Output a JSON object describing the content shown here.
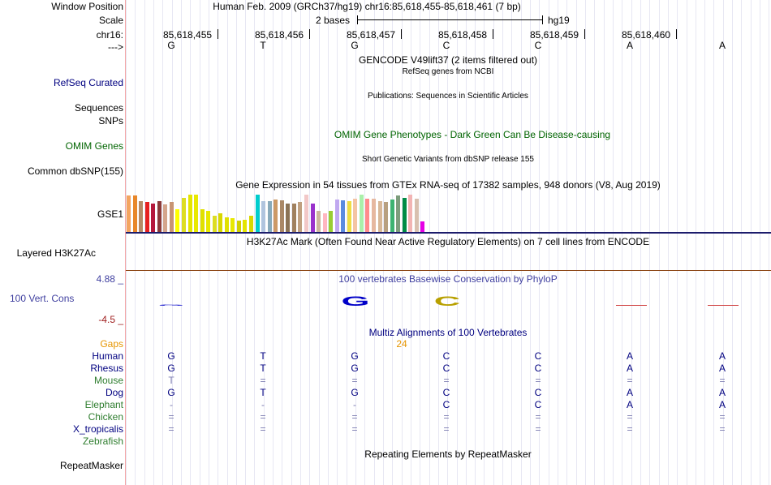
{
  "labels": {
    "window_position": "Window Position",
    "scale": "Scale",
    "chrom": "chr16:",
    "strand": "--->",
    "refseq": "RefSeq Curated",
    "sequences": "Sequences",
    "snps": "SNPs",
    "omim": "OMIM Genes",
    "common_dbsnp": "Common dbSNP(155)",
    "gse1": "GSE1",
    "h3k27ac": "Layered H3K27Ac",
    "phylop_max": "4.88 _",
    "phylop": "100 Vert. Cons",
    "phylop_min": "-4.5 _",
    "gaps": "Gaps",
    "species": [
      "Human",
      "Rhesus",
      "Mouse",
      "Dog",
      "Elephant",
      "Chicken",
      "X_tropicalis",
      "Zebrafish"
    ],
    "repeatmasker": "RepeatMasker"
  },
  "header": {
    "title": "Human Feb. 2009 (GRCh37/hg19)   chr16:85,618,455-85,618,461 (7 bp)",
    "scale_left": "2 bases",
    "scale_right": "hg19"
  },
  "ruler": {
    "positions": [
      "85,618,455",
      "85,618,456",
      "85,618,457",
      "85,618,458",
      "85,618,459",
      "85,618,460"
    ]
  },
  "sequence": [
    "G",
    "T",
    "G",
    "C",
    "C",
    "A",
    "A"
  ],
  "tracks": {
    "gencode": "GENCODE V49lift37 (2 items filtered out)",
    "refseq": "RefSeq genes from NCBI",
    "publications": "Publications: Sequences in Scientific Articles",
    "omim": "OMIM Gene Phenotypes - Dark Green Can Be Disease-causing",
    "dbsnp": "Short Genetic Variants from dbSNP release 155",
    "gtex": "Gene Expression in 54 tissues from GTEx RNA-seq of 17382 samples, 948 donors (V8, Aug 2019)",
    "h3k27ac": "H3K27Ac Mark (Often Found Near Active Regulatory Elements) on 7 cell lines from ENCODE",
    "phylop": "100 vertebrates Basewise Conservation by PhyloP",
    "multiz": "Multiz Alignments of 100 Vertebrates",
    "gap_count": "24",
    "repeatmasker": "Repeating Elements by RepeatMasker"
  },
  "alignment": [
    [
      "G",
      "T",
      "G",
      "C",
      "C",
      "A",
      "A"
    ],
    [
      "G",
      "T",
      "G",
      "C",
      "C",
      "A",
      "A"
    ],
    [
      "T",
      "=",
      "=",
      "=",
      "=",
      "=",
      "="
    ],
    [
      "G",
      "T",
      "G",
      "C",
      "C",
      "A",
      "A"
    ],
    [
      "-",
      "-",
      "-",
      "C",
      "C",
      "A",
      "A"
    ],
    [
      "=",
      "=",
      "=",
      "=",
      "=",
      "=",
      "="
    ],
    [
      "=",
      "=",
      "=",
      "=",
      "=",
      "=",
      "="
    ],
    [
      "",
      "",
      "",
      "",
      "",
      "",
      ""
    ]
  ],
  "gtex_values": [
    0.95,
    0.95,
    0.8,
    0.78,
    0.75,
    0.8,
    0.72,
    0.78,
    0.6,
    0.9,
    0.98,
    0.98,
    0.6,
    0.55,
    0.42,
    0.48,
    0.38,
    0.36,
    0.3,
    0.32,
    0.42,
    0.98,
    0.8,
    0.8,
    0.85,
    0.82,
    0.75,
    0.75,
    0.78,
    0.98,
    0.75,
    0.55,
    0.48,
    0.55,
    0.85,
    0.82,
    0.8,
    0.88,
    0.98,
    0.88,
    0.88,
    0.8,
    0.78,
    0.86,
    0.96,
    0.9,
    0.98,
    0.88,
    0.28
  ],
  "gtex_colors": [
    "#f4a460",
    "#e8872a",
    "#b58a66",
    "#e62020",
    "#b4183c",
    "#8b3a3a",
    "#d4a58c",
    "#c89474",
    "#ffff00",
    "#dddd22",
    "#e4e400",
    "#e8e800",
    "#e0e000",
    "#e8e800",
    "#dddd22",
    "#d8d800",
    "#e0e000",
    "#e8e800",
    "#d0d000",
    "#e4e400",
    "#d8d800",
    "#00cdcd",
    "#b0c4de",
    "#8ab",
    "#cc9966",
    "#aa8866",
    "#8b7355",
    "#a0805e",
    "#c0a080",
    "#f2c8c8",
    "#9932cc",
    "#cdb79e",
    "#ffb6c1",
    "#9acd32",
    "#c0a8f0",
    "#5b8bdf",
    "#eedd44",
    "#f4c4a4",
    "#aaf0aa",
    "#ff8c8c",
    "#e6b8a0",
    "#d8b898",
    "#b8a080",
    "#3cb371",
    "#7d9d7d",
    "#008b45",
    "#f2b4b4",
    "#d8c0b0",
    "#e600e6"
  ],
  "colors": {
    "track_label": "#000080",
    "omim": "#006400",
    "gaps": "#e69500",
    "phylop_label": "#4040a0",
    "phylop_min": "#a02020",
    "grid": "#e7e7f3",
    "mouse": "#7a7ab0",
    "green": "#2e7d2e"
  }
}
